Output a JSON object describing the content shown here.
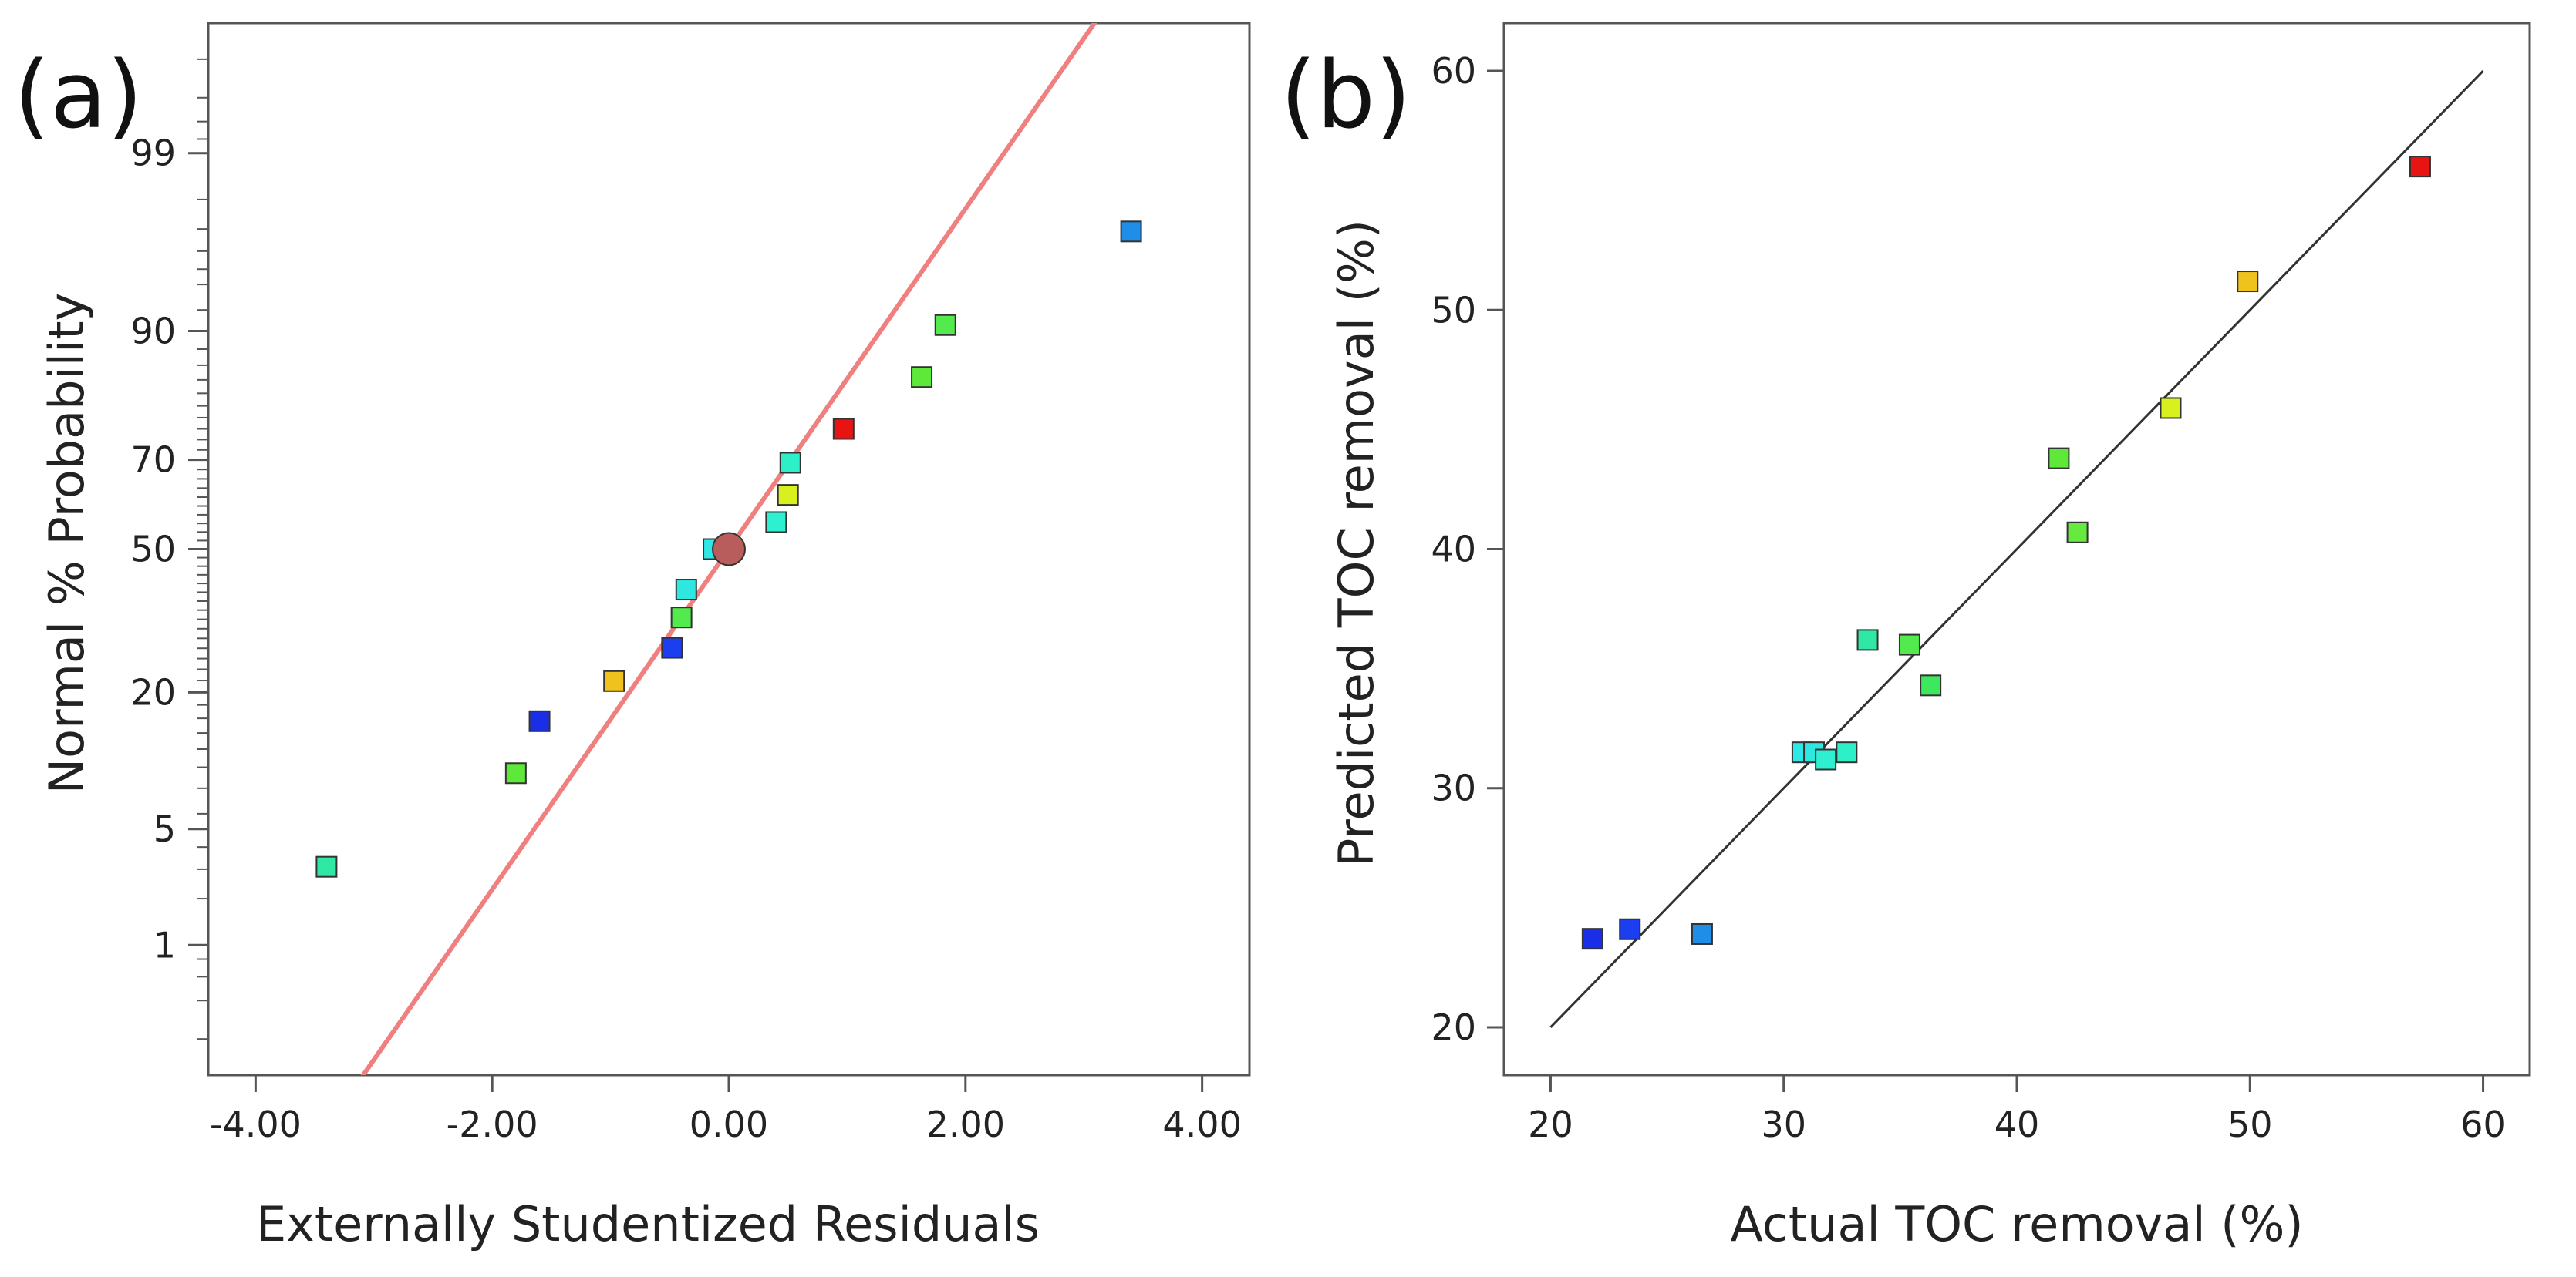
{
  "chart_data": [
    {
      "type": "scatter",
      "panel_label": "(a)",
      "title": "",
      "xlabel": "Externally Studentized Residuals",
      "ylabel": "Normal % Probability",
      "xlim": [
        -4.4,
        4.4
      ],
      "x_ticks": [
        -4,
        -2,
        0,
        2,
        4
      ],
      "x_tick_labels": [
        "-4.00",
        "-2.00",
        "0.00",
        "2.00",
        "4.00"
      ],
      "y_scale": "normal-probability",
      "ylim": [
        0.1,
        99.9
      ],
      "y_ticks": [
        1,
        5,
        20,
        50,
        70,
        90,
        99
      ],
      "y_tick_labels": [
        "1",
        "5",
        "20",
        "50",
        "70",
        "90",
        "99"
      ],
      "grid": false,
      "reference_line": {
        "color": "#f08080",
        "slope": 1.0,
        "intercept": 0.0
      },
      "series": [
        {
          "name": "residuals",
          "marker": "square",
          "points": [
            {
              "x": -3.4,
              "y": 3.1,
              "color": "#2ee8a4"
            },
            {
              "x": -1.8,
              "y": 9.4,
              "color": "#5ee83a"
            },
            {
              "x": -1.6,
              "y": 15.6,
              "color": "#1a2ee8"
            },
            {
              "x": -0.97,
              "y": 21.9,
              "color": "#f0c21e"
            },
            {
              "x": -0.48,
              "y": 28.1,
              "color": "#1a3ef0"
            },
            {
              "x": -0.4,
              "y": 34.4,
              "color": "#52ea4c"
            },
            {
              "x": -0.36,
              "y": 40.6,
              "color": "#2ee8e0"
            },
            {
              "x": -0.13,
              "y": 50.0,
              "color": "#2ee8e8"
            },
            {
              "x": 0.4,
              "y": 56.3,
              "color": "#2ef0d0"
            },
            {
              "x": 0.5,
              "y": 62.5,
              "color": "#d8f01e"
            },
            {
              "x": 0.52,
              "y": 69.4,
              "color": "#2ef0c8"
            },
            {
              "x": 0.97,
              "y": 76.0,
              "color": "#e81414"
            },
            {
              "x": 1.63,
              "y": 84.4,
              "color": "#5ee83a"
            },
            {
              "x": 1.83,
              "y": 90.6,
              "color": "#52ea4c"
            },
            {
              "x": 3.4,
              "y": 96.9,
              "color": "#1e8ee8"
            }
          ]
        },
        {
          "name": "center point",
          "marker": "circle",
          "points": [
            {
              "x": 0.0,
              "y": 50.0,
              "color": "#b85c5c"
            }
          ]
        }
      ]
    },
    {
      "type": "scatter",
      "panel_label": "(b)",
      "title": "",
      "xlabel": "Actual TOC removal (%)",
      "ylabel": "Predicted TOC removal (%)",
      "xlim": [
        18,
        62
      ],
      "ylim": [
        18,
        62
      ],
      "x_ticks": [
        20,
        30,
        40,
        50,
        60
      ],
      "y_ticks": [
        20,
        30,
        40,
        50,
        60
      ],
      "grid": false,
      "reference_line": {
        "color": "#333333",
        "x0": 20,
        "y0": 20,
        "x1": 60,
        "y1": 60
      },
      "series": [
        {
          "name": "data",
          "marker": "square",
          "points": [
            {
              "x": 21.8,
              "y": 23.7,
              "color": "#1a2ee8"
            },
            {
              "x": 23.4,
              "y": 24.1,
              "color": "#1a3ef0"
            },
            {
              "x": 26.5,
              "y": 23.9,
              "color": "#1e8ee8"
            },
            {
              "x": 30.8,
              "y": 31.5,
              "color": "#2ee8e8"
            },
            {
              "x": 31.3,
              "y": 31.5,
              "color": "#2ee8e0"
            },
            {
              "x": 31.8,
              "y": 31.2,
              "color": "#2ef0d0"
            },
            {
              "x": 32.7,
              "y": 31.5,
              "color": "#2ef0c8"
            },
            {
              "x": 33.6,
              "y": 36.2,
              "color": "#2ee8a4"
            },
            {
              "x": 35.4,
              "y": 36.0,
              "color": "#52ea4c"
            },
            {
              "x": 36.3,
              "y": 34.3,
              "color": "#3ee85c"
            },
            {
              "x": 41.8,
              "y": 43.8,
              "color": "#5ee83a"
            },
            {
              "x": 42.6,
              "y": 40.7,
              "color": "#66ea40"
            },
            {
              "x": 46.6,
              "y": 45.9,
              "color": "#d8f01e"
            },
            {
              "x": 49.9,
              "y": 51.2,
              "color": "#f0c21e"
            },
            {
              "x": 57.3,
              "y": 56.0,
              "color": "#e81414"
            }
          ]
        }
      ]
    }
  ]
}
